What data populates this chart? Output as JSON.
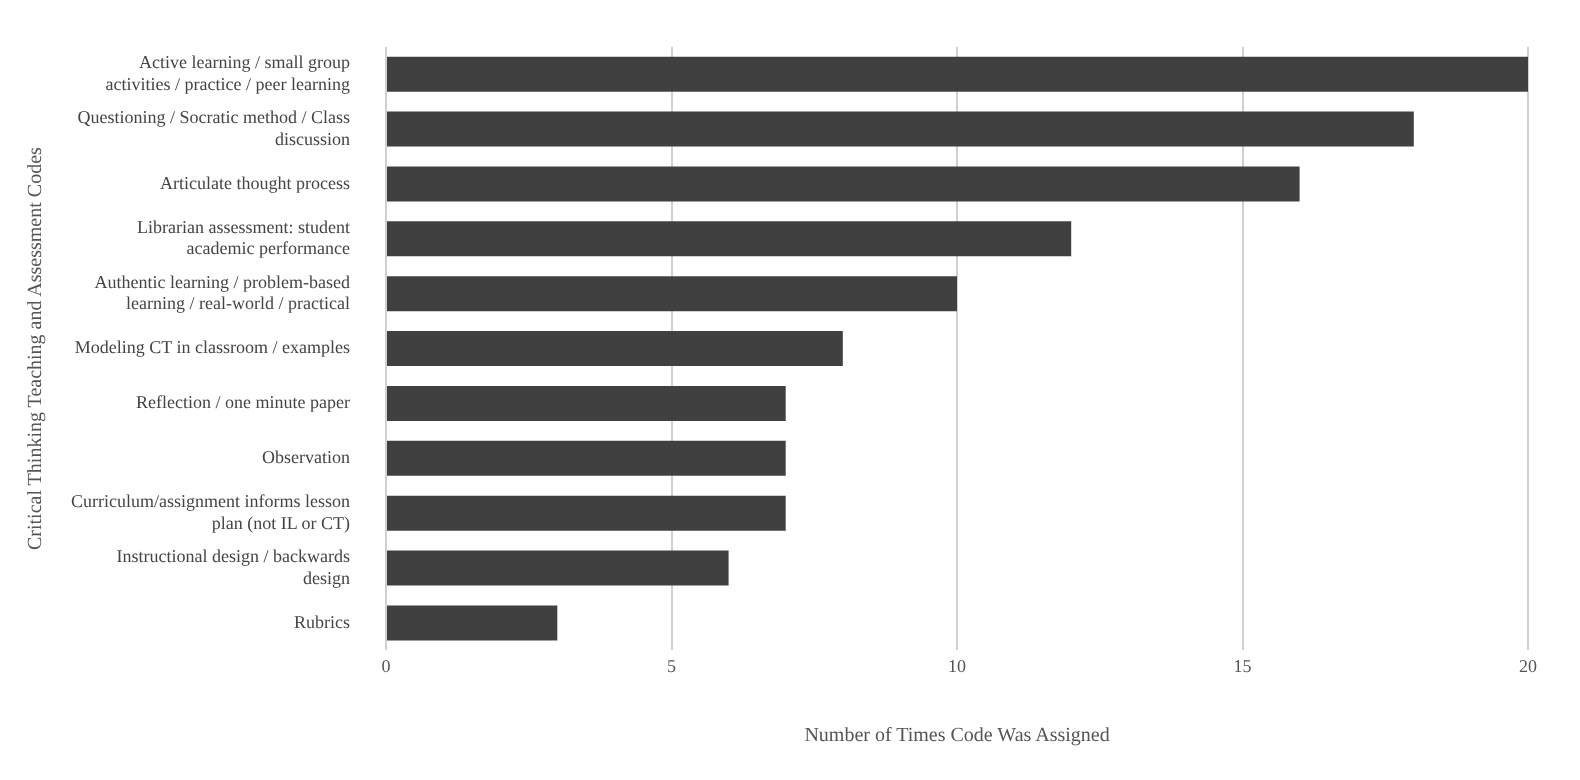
{
  "chart_data": {
    "type": "bar",
    "orientation": "horizontal",
    "xlabel": "Number of Times Code Was Assigned",
    "ylabel": "Critical Thinking Teaching and Assessment Codes",
    "categories": [
      "Active learning / small group activities / practice / peer learning",
      "Questioning / Socratic method / Class discussion",
      "Articulate thought process",
      "Librarian assessment: student academic performance",
      "Authentic learning / problem-based learning / real-world / practical",
      "Modeling CT in classroom / examples",
      "Reflection / one minute paper",
      "Observation",
      "Curriculum/assignment informs lesson plan (not IL or CT)",
      "Instructional design / backwards design",
      "Rubrics"
    ],
    "values": [
      20,
      18,
      16,
      12,
      10,
      8,
      7,
      7,
      7,
      6,
      3
    ],
    "color": "#404040",
    "xlim": [
      0,
      20
    ],
    "xticks": [
      0,
      5,
      10,
      15,
      20
    ],
    "grid": "x",
    "legend": false
  }
}
